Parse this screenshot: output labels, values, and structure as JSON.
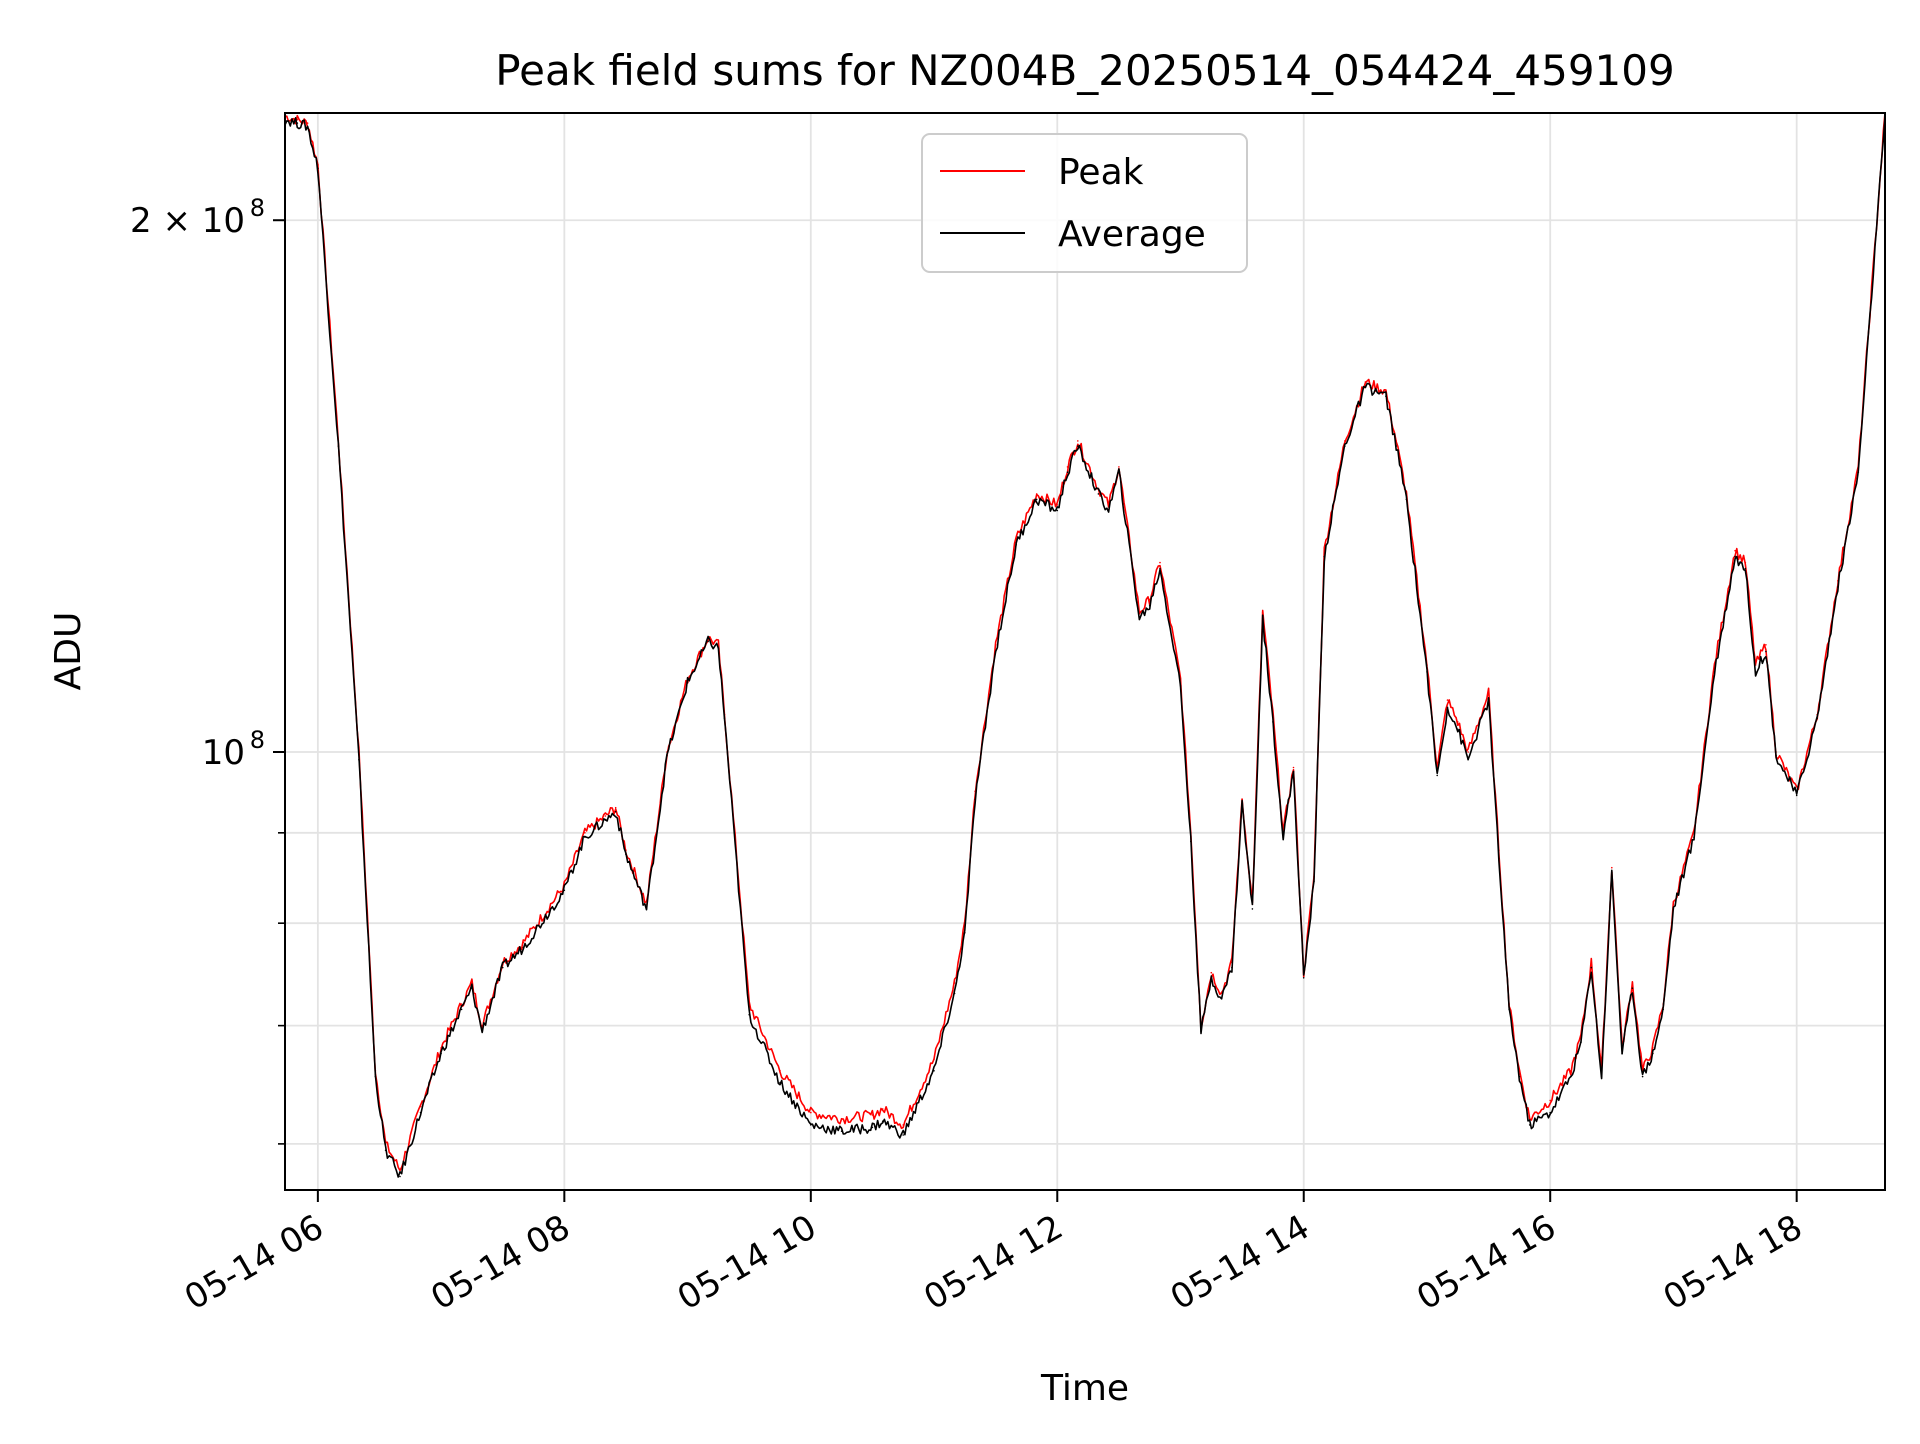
{
  "chart_data": {
    "type": "line",
    "title": "Peak field sums for NZ004B_20250514_054424_459109",
    "xlabel": "Time",
    "ylabel": "ADU",
    "y_scale": "log",
    "ylim": [
      56500000,
      230000000
    ],
    "xlim": [
      "05-14 05:44",
      "05-14 18:43"
    ],
    "grid": true,
    "legend": "upper center",
    "x_ticks": [
      {
        "label": "05-14 06",
        "value": "05-14 06:00"
      },
      {
        "label": "05-14 08",
        "value": "05-14 08:00"
      },
      {
        "label": "05-14 10",
        "value": "05-14 10:00"
      },
      {
        "label": "05-14 12",
        "value": "05-14 12:00"
      },
      {
        "label": "05-14 14",
        "value": "05-14 14:00"
      },
      {
        "label": "05-14 16",
        "value": "05-14 16:00"
      },
      {
        "label": "05-14 18",
        "value": "05-14 18:00"
      }
    ],
    "y_ticks": [
      {
        "label": "2 × 10",
        "sup": "8",
        "value": 200000000
      },
      {
        "label": "10",
        "sup": "8",
        "value": 100000000
      }
    ],
    "y_minor_ticks": [
      60000000,
      70000000,
      80000000,
      90000000
    ],
    "colors": {
      "Peak": "#ff0000",
      "Average": "#000000"
    },
    "series": [
      {
        "name": "Peak",
        "x": [
          "05:44",
          "05:50",
          "05:55",
          "06:00",
          "06:10",
          "06:20",
          "06:28",
          "06:33",
          "06:40",
          "06:50",
          "07:00",
          "07:10",
          "07:15",
          "07:20",
          "07:30",
          "07:40",
          "08:00",
          "08:10",
          "08:20",
          "08:25",
          "08:30",
          "08:40",
          "08:50",
          "09:00",
          "09:10",
          "09:15",
          "09:18",
          "09:30",
          "09:45",
          "10:00",
          "10:15",
          "10:30",
          "10:35",
          "10:45",
          "11:00",
          "11:10",
          "11:15",
          "11:20",
          "11:30",
          "11:40",
          "11:50",
          "12:00",
          "12:05",
          "12:10",
          "12:20",
          "12:25",
          "12:30",
          "12:40",
          "12:45",
          "12:50",
          "13:00",
          "13:05",
          "13:10",
          "13:15",
          "13:20",
          "13:25",
          "13:30",
          "13:35",
          "13:40",
          "13:45",
          "13:50",
          "13:55",
          "14:00",
          "14:05",
          "14:10",
          "14:20",
          "14:30",
          "14:40",
          "14:45",
          "14:50",
          "15:00",
          "15:05",
          "15:10",
          "15:15",
          "15:20",
          "15:30",
          "15:35",
          "15:40",
          "15:45",
          "15:50",
          "16:00",
          "16:10",
          "16:15",
          "16:20",
          "16:25",
          "16:30",
          "16:35",
          "16:40",
          "16:45",
          "16:50",
          "16:55",
          "17:00",
          "17:10",
          "17:20",
          "17:30",
          "17:35",
          "17:40",
          "17:45",
          "17:50",
          "18:00",
          "18:10",
          "18:20",
          "18:30",
          "18:43"
        ],
        "values": [
          229000000,
          228000000,
          227000000,
          215000000,
          150000000,
          100000000,
          66000000,
          60000000,
          58000000,
          63000000,
          68000000,
          72000000,
          74000000,
          70000000,
          76000000,
          78000000,
          84000000,
          90000000,
          92000000,
          93000000,
          88000000,
          82000000,
          100000000,
          110000000,
          116000000,
          115000000,
          105000000,
          72000000,
          66000000,
          62500000,
          62000000,
          62300000,
          62800000,
          61500000,
          67000000,
          74000000,
          80000000,
          95000000,
          115000000,
          132000000,
          140000000,
          138000000,
          145000000,
          150000000,
          141000000,
          138000000,
          145000000,
          120000000,
          122000000,
          128000000,
          110000000,
          90000000,
          70000000,
          75000000,
          73000000,
          76000000,
          94000000,
          82000000,
          120000000,
          105000000,
          90000000,
          98000000,
          75000000,
          85000000,
          130000000,
          150000000,
          162000000,
          160000000,
          150000000,
          140000000,
          112000000,
          98000000,
          107000000,
          104000000,
          100000000,
          108000000,
          88000000,
          72000000,
          66000000,
          62000000,
          63500000,
          66000000,
          69000000,
          76000000,
          66000000,
          86000000,
          68000000,
          74000000,
          66000000,
          68000000,
          72000000,
          82000000,
          90000000,
          112000000,
          130000000,
          128000000,
          112000000,
          115000000,
          100000000,
          95000000,
          105000000,
          125000000,
          145000000,
          230000000
        ]
      },
      {
        "name": "Average",
        "x": [
          "05:44",
          "05:50",
          "05:55",
          "06:00",
          "06:10",
          "06:20",
          "06:28",
          "06:33",
          "06:40",
          "06:50",
          "07:00",
          "07:10",
          "07:15",
          "07:20",
          "07:30",
          "07:40",
          "08:00",
          "08:10",
          "08:20",
          "08:25",
          "08:30",
          "08:40",
          "08:50",
          "09:00",
          "09:10",
          "09:15",
          "09:18",
          "09:30",
          "09:45",
          "10:00",
          "10:15",
          "10:30",
          "10:35",
          "10:45",
          "11:00",
          "11:10",
          "11:15",
          "11:20",
          "11:30",
          "11:40",
          "11:50",
          "12:00",
          "12:05",
          "12:10",
          "12:20",
          "12:25",
          "12:30",
          "12:40",
          "12:45",
          "12:50",
          "13:00",
          "13:05",
          "13:10",
          "13:15",
          "13:20",
          "13:25",
          "13:30",
          "13:35",
          "13:40",
          "13:45",
          "13:50",
          "13:55",
          "14:00",
          "14:05",
          "14:10",
          "14:20",
          "14:30",
          "14:40",
          "14:45",
          "14:50",
          "15:00",
          "15:05",
          "15:10",
          "15:15",
          "15:20",
          "15:30",
          "15:35",
          "15:40",
          "15:45",
          "15:50",
          "16:00",
          "16:10",
          "16:15",
          "16:20",
          "16:25",
          "16:30",
          "16:35",
          "16:40",
          "16:45",
          "16:50",
          "16:55",
          "17:00",
          "17:10",
          "17:20",
          "17:30",
          "17:35",
          "17:40",
          "17:45",
          "17:50",
          "18:00",
          "18:10",
          "18:20",
          "18:30",
          "18:43"
        ],
        "values": [
          228000000,
          227000000,
          226000000,
          214000000,
          149000000,
          99000000,
          65500000,
          59500000,
          57500000,
          62500000,
          67500000,
          71500000,
          73500000,
          69500000,
          75500000,
          77500000,
          83500000,
          89500000,
          91500000,
          92500000,
          87500000,
          81500000,
          99500000,
          109500000,
          115500000,
          114500000,
          104500000,
          71000000,
          65000000,
          61500000,
          61000000,
          61300000,
          61800000,
          60700000,
          66000000,
          73000000,
          79000000,
          94000000,
          114000000,
          131000000,
          139000000,
          137000000,
          144000000,
          149000000,
          140000000,
          137000000,
          144000000,
          119000000,
          121000000,
          127000000,
          109000000,
          89000000,
          69500000,
          74500000,
          72500000,
          75500000,
          93500000,
          81500000,
          119000000,
          104000000,
          89500000,
          97500000,
          74500000,
          84500000,
          129000000,
          149000000,
          161000000,
          159000000,
          149000000,
          139000000,
          111000000,
          97000000,
          106000000,
          103000000,
          99000000,
          107000000,
          87000000,
          71500000,
          65500000,
          61500000,
          62500000,
          65500000,
          68500000,
          75500000,
          65500000,
          85500000,
          67500000,
          73500000,
          65500000,
          67500000,
          71500000,
          81500000,
          89500000,
          111000000,
          129000000,
          127000000,
          111000000,
          114000000,
          99500000,
          94500000,
          104500000,
          124000000,
          144000000,
          229000000
        ]
      }
    ]
  }
}
